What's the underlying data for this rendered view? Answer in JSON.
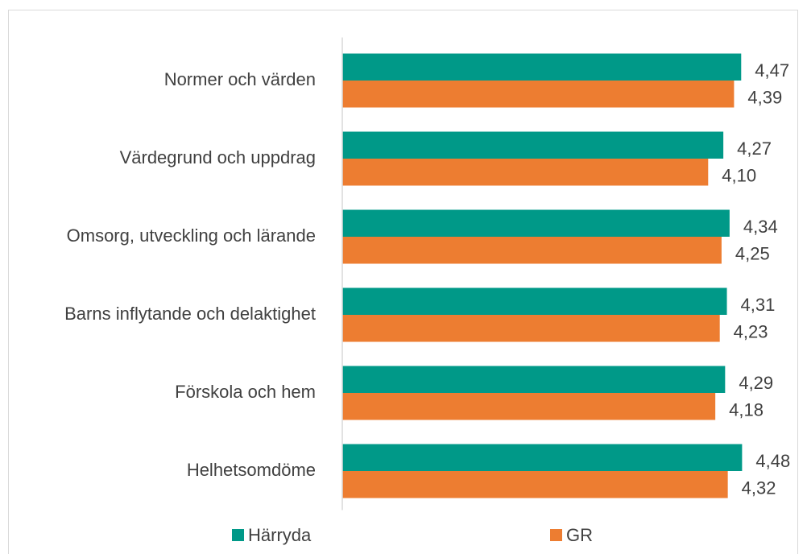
{
  "chart_data": {
    "type": "bar",
    "orientation": "horizontal",
    "categories": [
      "Normer och värden",
      "Värdegrund och uppdrag",
      "Omsorg, utveckling och lärande",
      "Barns inflytande och delaktighet",
      "Förskola och hem",
      "Helhetsomdöme"
    ],
    "series": [
      {
        "name": "Härryda",
        "color": "#009988",
        "values": [
          4.47,
          4.27,
          4.34,
          4.31,
          4.29,
          4.48
        ],
        "value_labels": [
          "4,47",
          "4,27",
          "4,34",
          "4,31",
          "4,29",
          "4,48"
        ]
      },
      {
        "name": "GR",
        "color": "#ed7d31",
        "values": [
          4.39,
          4.1,
          4.25,
          4.23,
          4.18,
          4.32
        ],
        "value_labels": [
          "4,39",
          "4,10",
          "4,25",
          "4,23",
          "4,18",
          "4,32"
        ]
      }
    ],
    "xlim": [
      0,
      5
    ]
  }
}
